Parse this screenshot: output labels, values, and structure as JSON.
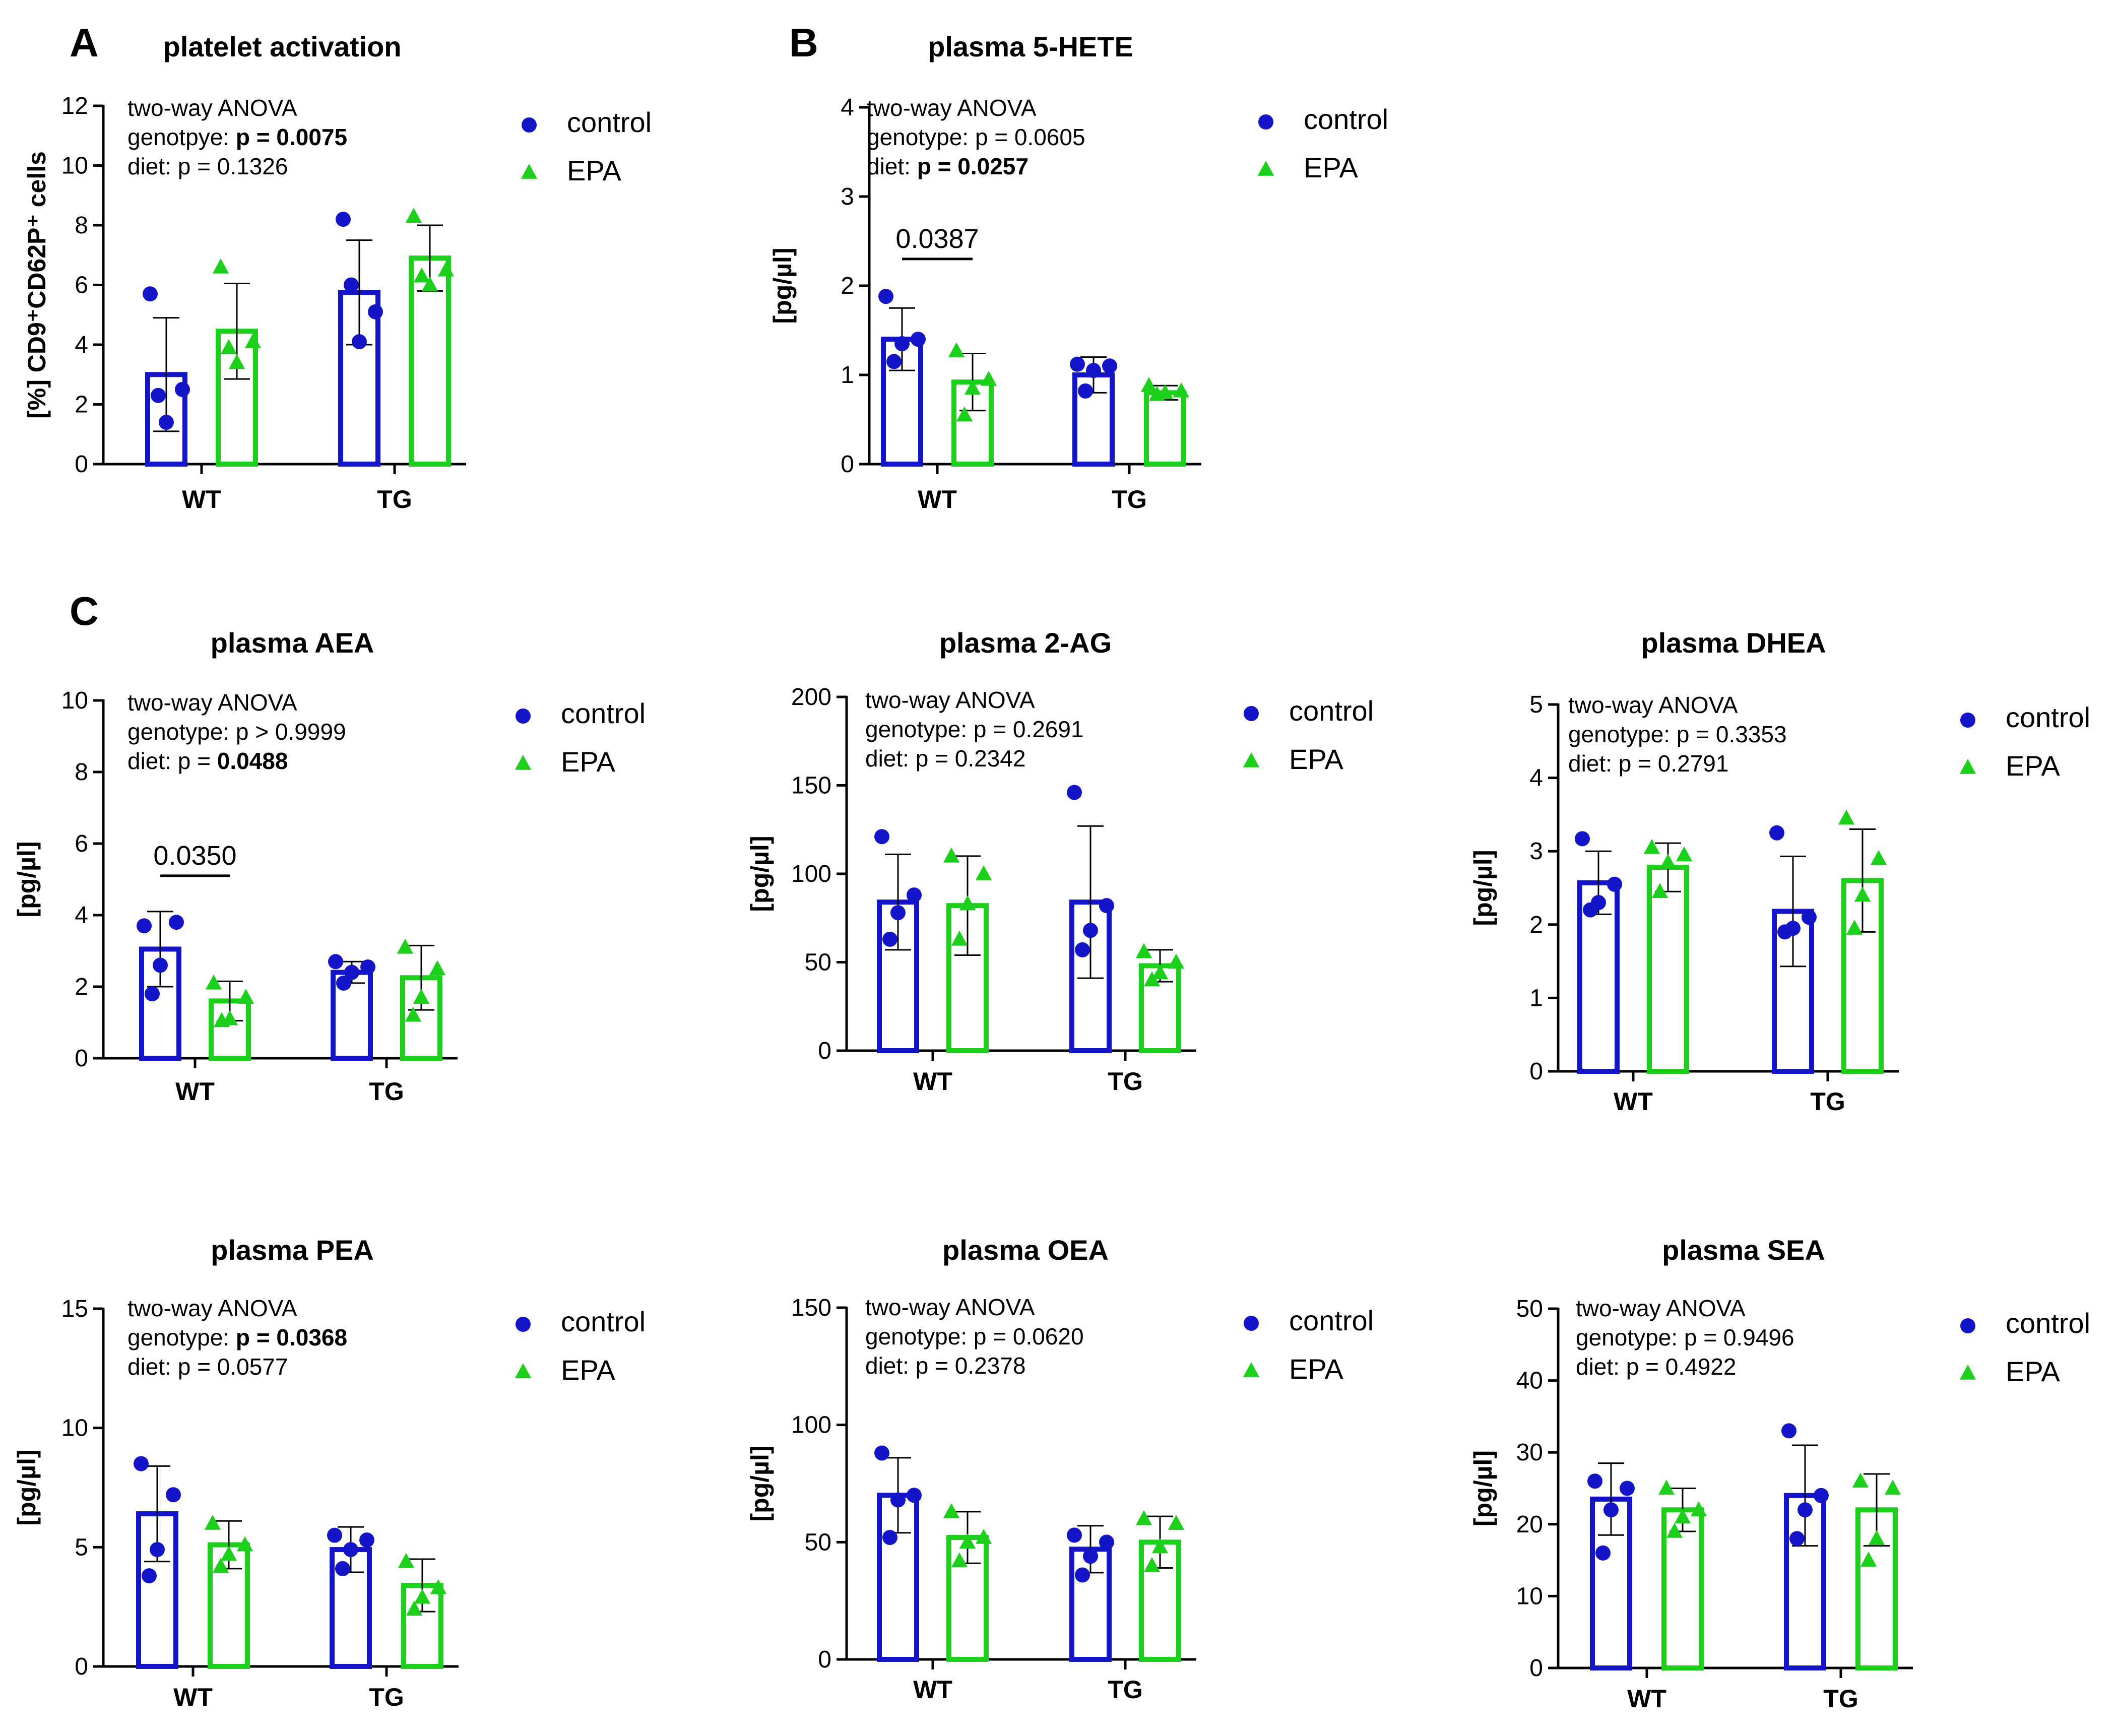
{
  "figure": {
    "panel_letters": [
      "A",
      "B",
      "C"
    ]
  },
  "legend_labels": {
    "control": "control",
    "epa": "EPA"
  },
  "colors": {
    "control": "#1414C8",
    "epa": "#1BCF1B",
    "axis": "#000000"
  },
  "chart_data": [
    {
      "id": "platelet",
      "type": "bar",
      "panel_letter": "A",
      "title": "platelet activation",
      "ylabel": "[%] CD9⁺CD62P⁺ cells",
      "ylim": [
        0,
        12
      ],
      "yticks": [
        0,
        2,
        4,
        6,
        8,
        10,
        12
      ],
      "categories": [
        "WT",
        "TG"
      ],
      "anova": {
        "header": "two-way ANOVA",
        "genotype": {
          "prefix": "genotpye: ",
          "value": "p = 0.0075",
          "bold": true
        },
        "diet": {
          "prefix": "diet: ",
          "value": "p = 0.1326",
          "bold": false
        }
      },
      "series": [
        {
          "name": "control",
          "values": [
            3.0,
            5.75
          ],
          "sd": [
            1.9,
            1.75
          ],
          "points": [
            [
              5.7,
              2.5,
              1.4,
              2.3
            ],
            [
              8.2,
              5.1,
              4.1,
              6.0
            ]
          ]
        },
        {
          "name": "EPA",
          "values": [
            4.45,
            6.9
          ],
          "sd": [
            1.6,
            1.1
          ],
          "points": [
            [
              6.6,
              4.1,
              3.4,
              3.9
            ],
            [
              8.3,
              6.5,
              6.0,
              6.3
            ]
          ]
        }
      ],
      "significance": []
    },
    {
      "id": "hete",
      "type": "bar",
      "panel_letter": "B",
      "title": "plasma 5-HETE",
      "ylabel": "[pg/µl]",
      "ylim": [
        0,
        4
      ],
      "yticks": [
        0,
        1,
        2,
        3,
        4
      ],
      "categories": [
        "WT",
        "TG"
      ],
      "anova": {
        "header": "two-way ANOVA",
        "genotype": {
          "prefix": "genotype: ",
          "value": "p = 0.0605",
          "bold": false
        },
        "diet": {
          "prefix": "diet: ",
          "value": "p = 0.0257",
          "bold": true
        }
      },
      "series": [
        {
          "name": "control",
          "values": [
            1.4,
            1.0
          ],
          "sd": [
            0.35,
            0.2
          ],
          "points": [
            [
              1.88,
              1.4,
              1.35,
              1.15
            ],
            [
              1.12,
              1.1,
              1.05,
              0.82
            ]
          ]
        },
        {
          "name": "EPA",
          "values": [
            0.92,
            0.8
          ],
          "sd": [
            0.32,
            0.08
          ],
          "points": [
            [
              1.27,
              0.95,
              0.85,
              0.55
            ],
            [
              0.88,
              0.82,
              0.8,
              0.78
            ]
          ]
        }
      ],
      "significance": [
        {
          "category": 0,
          "label": "0.0387",
          "y": 2.3
        }
      ]
    },
    {
      "id": "aea",
      "type": "bar",
      "panel_letter": "C",
      "title": "plasma AEA",
      "ylabel": "[pg/µl]",
      "ylim": [
        0,
        10
      ],
      "yticks": [
        0,
        2,
        4,
        6,
        8,
        10
      ],
      "categories": [
        "WT",
        "TG"
      ],
      "anova": {
        "header": "two-way ANOVA",
        "genotype": {
          "prefix": "genotype: ",
          "value": "p > 0.9999",
          "bold": false
        },
        "diet": {
          "prefix": "diet: p = ",
          "value": "0.0488",
          "bold": true
        }
      },
      "series": [
        {
          "name": "control",
          "values": [
            3.05,
            2.4
          ],
          "sd": [
            1.05,
            0.3
          ],
          "points": [
            [
              3.7,
              3.8,
              2.6,
              1.8
            ],
            [
              2.7,
              2.55,
              2.4,
              2.1
            ]
          ]
        },
        {
          "name": "EPA",
          "values": [
            1.6,
            2.25
          ],
          "sd": [
            0.55,
            0.9
          ],
          "points": [
            [
              2.1,
              1.7,
              1.1,
              1.05
            ],
            [
              3.1,
              2.5,
              1.7,
              1.2
            ]
          ]
        }
      ],
      "significance": [
        {
          "category": 0,
          "label": "0.0350",
          "y": 5.1
        }
      ]
    },
    {
      "id": "twoag",
      "type": "bar",
      "title": "plasma 2-AG",
      "ylabel": "[pg/µl]",
      "ylim": [
        0,
        200
      ],
      "yticks": [
        0,
        50,
        100,
        150,
        200
      ],
      "categories": [
        "WT",
        "TG"
      ],
      "anova": {
        "header": "two-way ANOVA",
        "genotype": {
          "prefix": "genotype: ",
          "value": "p = 0.2691",
          "bold": false
        },
        "diet": {
          "prefix": "diet: ",
          "value": "p = 0.2342",
          "bold": false
        }
      },
      "series": [
        {
          "name": "control",
          "values": [
            84,
            84
          ],
          "sd": [
            27,
            43
          ],
          "points": [
            [
              121,
              88,
              78,
              63
            ],
            [
              146,
              82,
              68,
              57
            ]
          ]
        },
        {
          "name": "EPA",
          "values": [
            82,
            48
          ],
          "sd": [
            28,
            9
          ],
          "points": [
            [
              110,
              100,
              83,
              63
            ],
            [
              56,
              50,
              44,
              40
            ]
          ]
        }
      ],
      "significance": []
    },
    {
      "id": "dhea",
      "type": "bar",
      "title": "plasma DHEA",
      "ylabel": "[pg/µl]",
      "ylim": [
        0,
        5
      ],
      "yticks": [
        0,
        1,
        2,
        3,
        4,
        5
      ],
      "categories": [
        "WT",
        "TG"
      ],
      "anova": {
        "header": "two-way ANOVA",
        "genotype": {
          "prefix": "genotype: ",
          "value": "p = 0.3353",
          "bold": false
        },
        "diet": {
          "prefix": "diet: ",
          "value": "p = 0.2791",
          "bold": false
        }
      },
      "series": [
        {
          "name": "control",
          "values": [
            2.57,
            2.18
          ],
          "sd": [
            0.43,
            0.75
          ],
          "points": [
            [
              3.17,
              2.55,
              2.3,
              2.2
            ],
            [
              3.25,
              2.1,
              1.95,
              1.9
            ]
          ]
        },
        {
          "name": "EPA",
          "values": [
            2.78,
            2.6
          ],
          "sd": [
            0.33,
            0.7
          ],
          "points": [
            [
              3.05,
              2.95,
              2.85,
              2.45
            ],
            [
              3.45,
              2.9,
              2.4,
              1.95
            ]
          ]
        }
      ],
      "significance": []
    },
    {
      "id": "pea",
      "type": "bar",
      "title": "plasma PEA",
      "ylabel": "[pg/µl]",
      "ylim": [
        0,
        15
      ],
      "yticks": [
        0,
        5,
        10,
        15
      ],
      "categories": [
        "WT",
        "TG"
      ],
      "anova": {
        "header": "two-way ANOVA",
        "genotype": {
          "prefix": "genotype: ",
          "value": "p = 0.0368",
          "bold": true
        },
        "diet": {
          "prefix": "diet: ",
          "value": "p = 0.0577",
          "bold": false
        }
      },
      "series": [
        {
          "name": "control",
          "values": [
            6.4,
            4.9
          ],
          "sd": [
            2.0,
            0.95
          ],
          "points": [
            [
              8.5,
              7.2,
              4.9,
              3.8
            ],
            [
              5.5,
              5.3,
              4.9,
              4.1
            ]
          ]
        },
        {
          "name": "EPA",
          "values": [
            5.1,
            3.4
          ],
          "sd": [
            1.0,
            1.1
          ],
          "points": [
            [
              6.0,
              5.1,
              4.7,
              4.2
            ],
            [
              4.4,
              3.3,
              2.9,
              2.4
            ]
          ]
        }
      ],
      "significance": []
    },
    {
      "id": "oea",
      "type": "bar",
      "title": "plasma OEA",
      "ylabel": "[pg/µl]",
      "ylim": [
        0,
        150
      ],
      "yticks": [
        0,
        50,
        100,
        150
      ],
      "categories": [
        "WT",
        "TG"
      ],
      "anova": {
        "header": "two-way ANOVA",
        "genotype": {
          "prefix": "genotype: ",
          "value": "p = 0.0620",
          "bold": false
        },
        "diet": {
          "prefix": "diet: ",
          "value": "p = 0.2378",
          "bold": false
        }
      },
      "series": [
        {
          "name": "control",
          "values": [
            70,
            47
          ],
          "sd": [
            16,
            10
          ],
          "points": [
            [
              88,
              70,
              68,
              52
            ],
            [
              53,
              50,
              44,
              36
            ]
          ]
        },
        {
          "name": "EPA",
          "values": [
            52,
            50
          ],
          "sd": [
            11,
            11
          ],
          "points": [
            [
              63,
              52,
              50,
              42
            ],
            [
              60,
              58,
              48,
              40
            ]
          ]
        }
      ],
      "significance": []
    },
    {
      "id": "sea",
      "type": "bar",
      "title": "plasma SEA",
      "ylabel": "[pg/µl]",
      "ylim": [
        0,
        50
      ],
      "yticks": [
        0,
        10,
        20,
        30,
        40,
        50
      ],
      "categories": [
        "WT",
        "TG"
      ],
      "anova": {
        "header": "two-way ANOVA",
        "genotype": {
          "prefix": "genotype: ",
          "value": "p = 0.9496",
          "bold": false
        },
        "diet": {
          "prefix": "diet: ",
          "value": "p = 0.4922",
          "bold": false
        }
      },
      "series": [
        {
          "name": "control",
          "values": [
            23.5,
            24
          ],
          "sd": [
            5,
            7
          ],
          "points": [
            [
              26,
              25,
              22,
              16
            ],
            [
              33,
              24,
              22,
              18
            ]
          ]
        },
        {
          "name": "EPA",
          "values": [
            22,
            22
          ],
          "sd": [
            3,
            5
          ],
          "points": [
            [
              25,
              22,
              21,
              19
            ],
            [
              26,
              25,
              18,
              15
            ]
          ]
        }
      ],
      "significance": []
    }
  ]
}
